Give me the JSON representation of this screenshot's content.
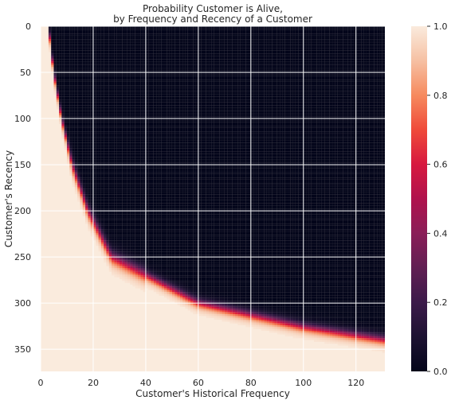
{
  "chart_data": {
    "type": "heatmap",
    "title": "Probability Customer is Alive,",
    "subtitle": "by Frequency and Recency of a Customer",
    "xlabel": "Customer's Historical Frequency",
    "ylabel": "Customer's Recency",
    "xlim": [
      0,
      131
    ],
    "ylim": [
      374,
      0
    ],
    "x_ticks": [
      "0",
      "20",
      "40",
      "60",
      "80",
      "100",
      "120"
    ],
    "y_ticks": [
      "0",
      "50",
      "100",
      "150",
      "200",
      "250",
      "300",
      "350"
    ],
    "colorbar": {
      "min": 0.0,
      "max": 1.0,
      "ticks": [
        "0.0",
        "0.2",
        "0.4",
        "0.6",
        "0.8",
        "1.0"
      ],
      "colormap": "rocket"
    },
    "grid": true,
    "boundary_p50_curve": [
      {
        "frequency": 3,
        "recency": 0
      },
      {
        "frequency": 5,
        "recency": 50
      },
      {
        "frequency": 8,
        "recency": 100
      },
      {
        "frequency": 12,
        "recency": 150
      },
      {
        "frequency": 18,
        "recency": 200
      },
      {
        "frequency": 27,
        "recency": 250
      },
      {
        "frequency": 60,
        "recency": 300
      },
      {
        "frequency": 100,
        "recency": 326
      },
      {
        "frequency": 131,
        "recency": 340
      }
    ]
  }
}
